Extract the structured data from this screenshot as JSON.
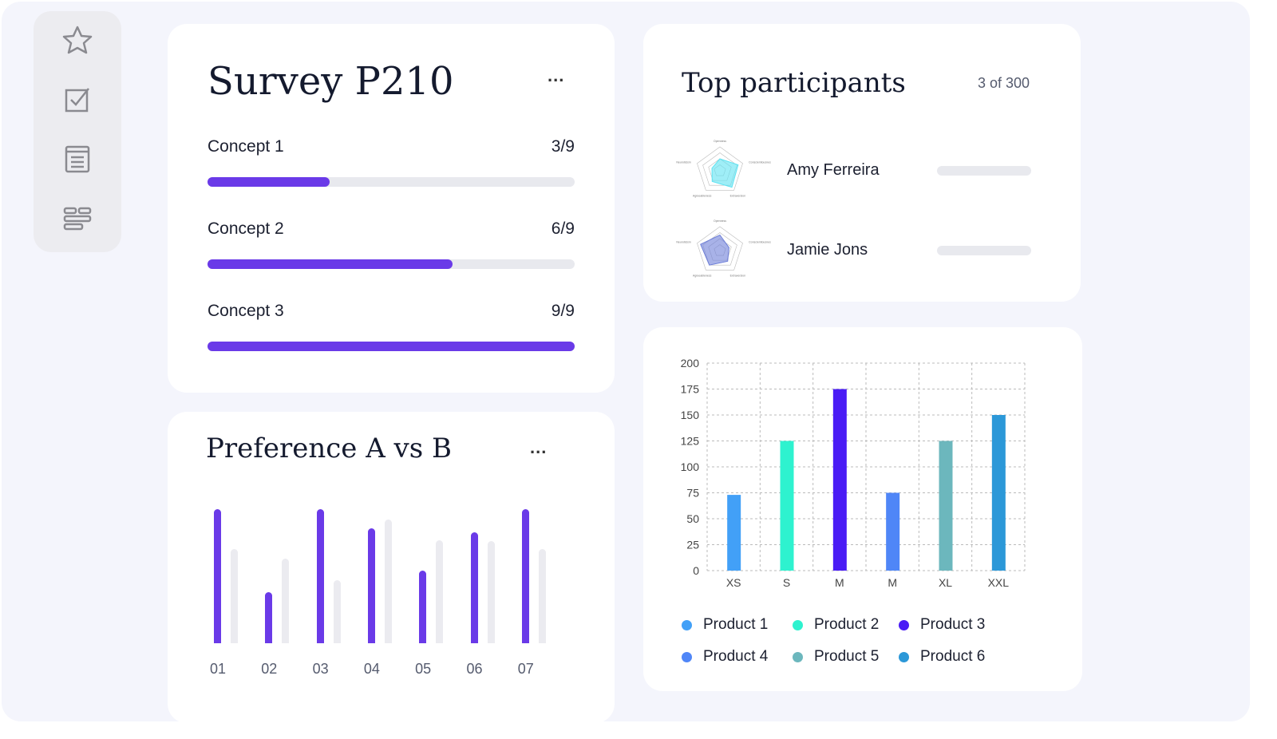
{
  "sidebar": {
    "items": [
      {
        "icon": "star-icon"
      },
      {
        "icon": "checkbox-icon"
      },
      {
        "icon": "document-list-icon"
      },
      {
        "icon": "layout-icon"
      }
    ]
  },
  "survey": {
    "title": "Survey P210",
    "menu": "...",
    "concepts": [
      {
        "label": "Concept 1",
        "value": "3/9",
        "progress": 0.333
      },
      {
        "label": "Concept 2",
        "value": "6/9",
        "progress": 0.667
      },
      {
        "label": "Concept 3",
        "value": "9/9",
        "progress": 1.0
      }
    ],
    "bar_color": "#6a3ae8"
  },
  "participants": {
    "title": "Top participants",
    "count": "3 of 300",
    "radar_axes": [
      "Openness",
      "Conscientiousness",
      "Extraversion",
      "Agreeableness",
      "Neuroticism"
    ],
    "people": [
      {
        "name": "Amy Ferreira",
        "color": "#5fe3f2"
      },
      {
        "name": "Jamie Jons",
        "color": "#6e7fd8"
      }
    ]
  },
  "preference": {
    "title": "Preference A vs B",
    "menu": "...",
    "chart_data": {
      "type": "bar",
      "categories": [
        "01",
        "02",
        "03",
        "04",
        "05",
        "06",
        "07"
      ],
      "series": [
        {
          "values": [
            100,
            38,
            100,
            86,
            54,
            83,
            100
          ],
          "color": "#6a3ae8"
        },
        {
          "values": [
            70,
            63,
            47,
            92,
            77,
            76,
            70
          ],
          "color": "#ebebf0"
        }
      ],
      "ylim": [
        0,
        100
      ]
    }
  },
  "products": {
    "chart_data": {
      "type": "bar",
      "categories": [
        "XS",
        "S",
        "M",
        "M",
        "XL",
        "XXL"
      ],
      "values": [
        73,
        125,
        175,
        75,
        125,
        150
      ],
      "colors": [
        "#42a0f7",
        "#2ef2cf",
        "#4a1cf5",
        "#4f86f7",
        "#6cb7bd",
        "#2c98d8"
      ],
      "yticks": [
        0,
        25,
        50,
        75,
        100,
        125,
        150,
        175,
        200
      ],
      "ylim": [
        0,
        200
      ],
      "grid": true,
      "legend": [
        "Product 1",
        "Product 2",
        "Product 3",
        "Product 4",
        "Product 5",
        "Product 6"
      ],
      "legend_position": "bottom"
    }
  }
}
